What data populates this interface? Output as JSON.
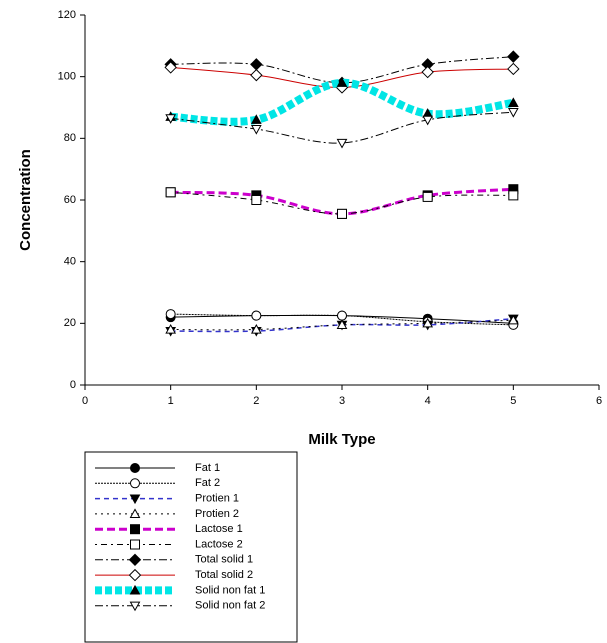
{
  "chart_data": {
    "type": "line",
    "x_label": "Milk Type",
    "y_label": "Concentration",
    "x": [
      1,
      2,
      3,
      4,
      5
    ],
    "xlim": [
      0,
      6
    ],
    "xticks": [
      0,
      1,
      2,
      3,
      4,
      5,
      6
    ],
    "ylim": [
      0,
      120
    ],
    "yticks": [
      0,
      20,
      40,
      60,
      80,
      100,
      120
    ],
    "grid": false,
    "legend": "below",
    "series": [
      {
        "name": "Fat 1",
        "color": "#000000",
        "marker": "circle",
        "filled": true,
        "dash": "none",
        "width": 1,
        "values": [
          22,
          22.5,
          22.5,
          21.5,
          20
        ]
      },
      {
        "name": "Fat 2",
        "color": "#000000",
        "marker": "circle",
        "filled": false,
        "dash": "2,1",
        "width": 1,
        "values": [
          23,
          22.5,
          22.5,
          20.5,
          19.5
        ]
      },
      {
        "name": "Protien 1",
        "color": "#3333cc",
        "marker": "triangle-down",
        "filled": true,
        "dash": "5,4",
        "width": 1.5,
        "values": [
          17.5,
          17.5,
          19.5,
          19.5,
          21.5
        ]
      },
      {
        "name": "Protien 2",
        "color": "#000000",
        "marker": "triangle-up",
        "filled": false,
        "dash": "2,4",
        "width": 1,
        "values": [
          18,
          18,
          19.5,
          20,
          21
        ]
      },
      {
        "name": "Lactose 1",
        "color": "#cc00cc",
        "marker": "square",
        "filled": true,
        "dash": "8,4",
        "width": 3,
        "values": [
          62.5,
          61.5,
          55.5,
          61.5,
          63.5
        ]
      },
      {
        "name": "Lactose 2",
        "color": "#000000",
        "marker": "square",
        "filled": false,
        "dash": "2,4,6,4",
        "width": 1,
        "values": [
          62.5,
          60,
          55.5,
          61,
          61.5
        ]
      },
      {
        "name": "Total solid 1",
        "color": "#000000",
        "marker": "diamond",
        "filled": true,
        "dash": "8,3,2,3",
        "width": 1,
        "values": [
          104,
          104,
          98,
          104,
          106.5
        ]
      },
      {
        "name": "Total solid 2",
        "color": "#cc0000",
        "marker": "diamond",
        "filled": false,
        "dash": "none",
        "width": 1,
        "values": [
          103,
          100.5,
          96.5,
          101.5,
          102.5
        ]
      },
      {
        "name": "Solid non fat 1",
        "color": "#00e5e5",
        "marker": "triangle-up",
        "filled": true,
        "dash": "7,3",
        "width": 8,
        "values": [
          87,
          86,
          98,
          88,
          91.5
        ]
      },
      {
        "name": "Solid non fat 2",
        "color": "#000000",
        "marker": "triangle-down",
        "filled": false,
        "dash": "8,3,2,3",
        "width": 1,
        "values": [
          86.5,
          83,
          78.5,
          86,
          88.5
        ]
      }
    ]
  }
}
